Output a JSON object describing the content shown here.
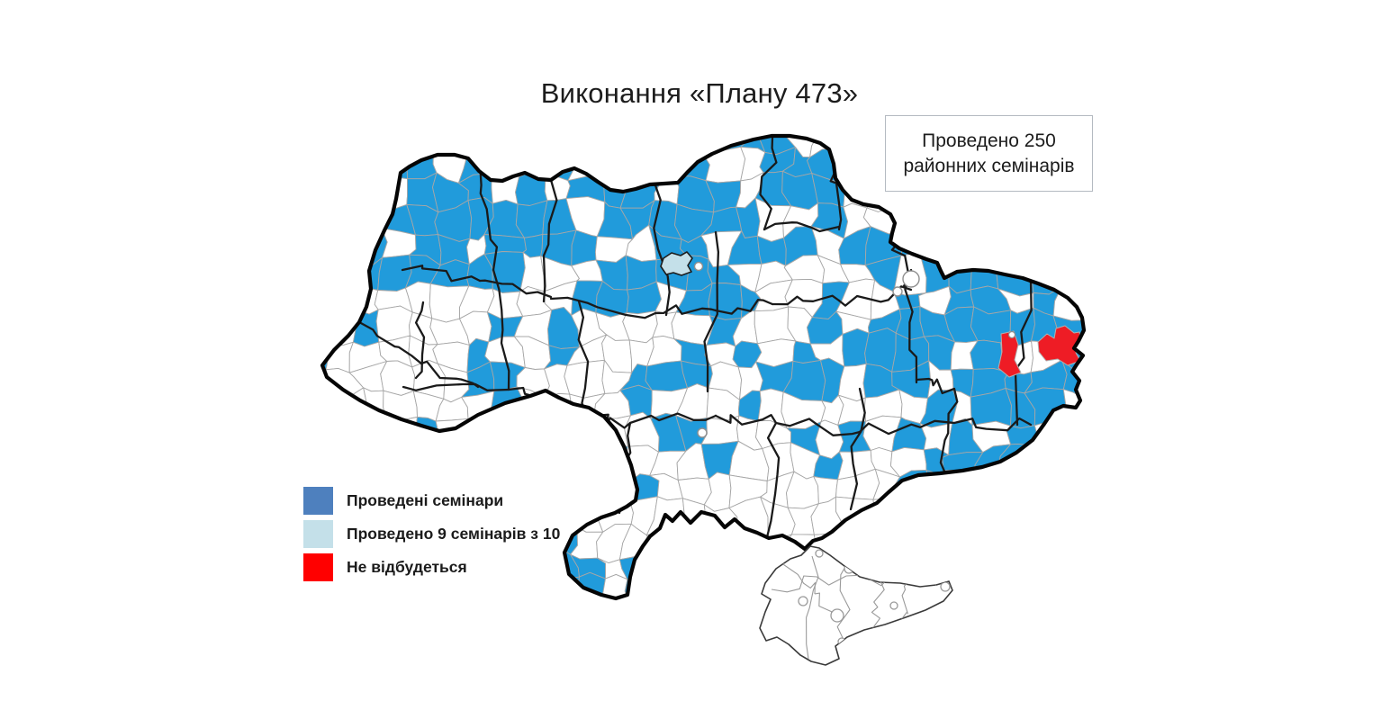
{
  "title": "Виконання «Плану 473»",
  "annotation": {
    "text": "Проведено 250 районних семінарів"
  },
  "legend": {
    "items": [
      {
        "id": "done",
        "label": "Проведені семінари",
        "color": "#4E80BE"
      },
      {
        "id": "nine-of-ten",
        "label": "Проведено 9 семінарів з 10",
        "color": "#C4E0E9"
      },
      {
        "id": "cancelled",
        "label": "Не відбудеться",
        "color": "#FF0000"
      }
    ]
  },
  "map": {
    "colors": {
      "seminar_done": "#219BDB",
      "no_seminar": "#FFFFFF",
      "nine_of_ten": "#C4E0E9",
      "cancelled": "#EE1C25",
      "district_border": "#A6A6A6",
      "oblast_border": "#1A1A1A",
      "country_outline": "#050505",
      "crimea_outline": "#3A3A3A",
      "city_circle_border": "#8F8F8F"
    }
  },
  "page": {
    "background": "#FFFFFF"
  }
}
